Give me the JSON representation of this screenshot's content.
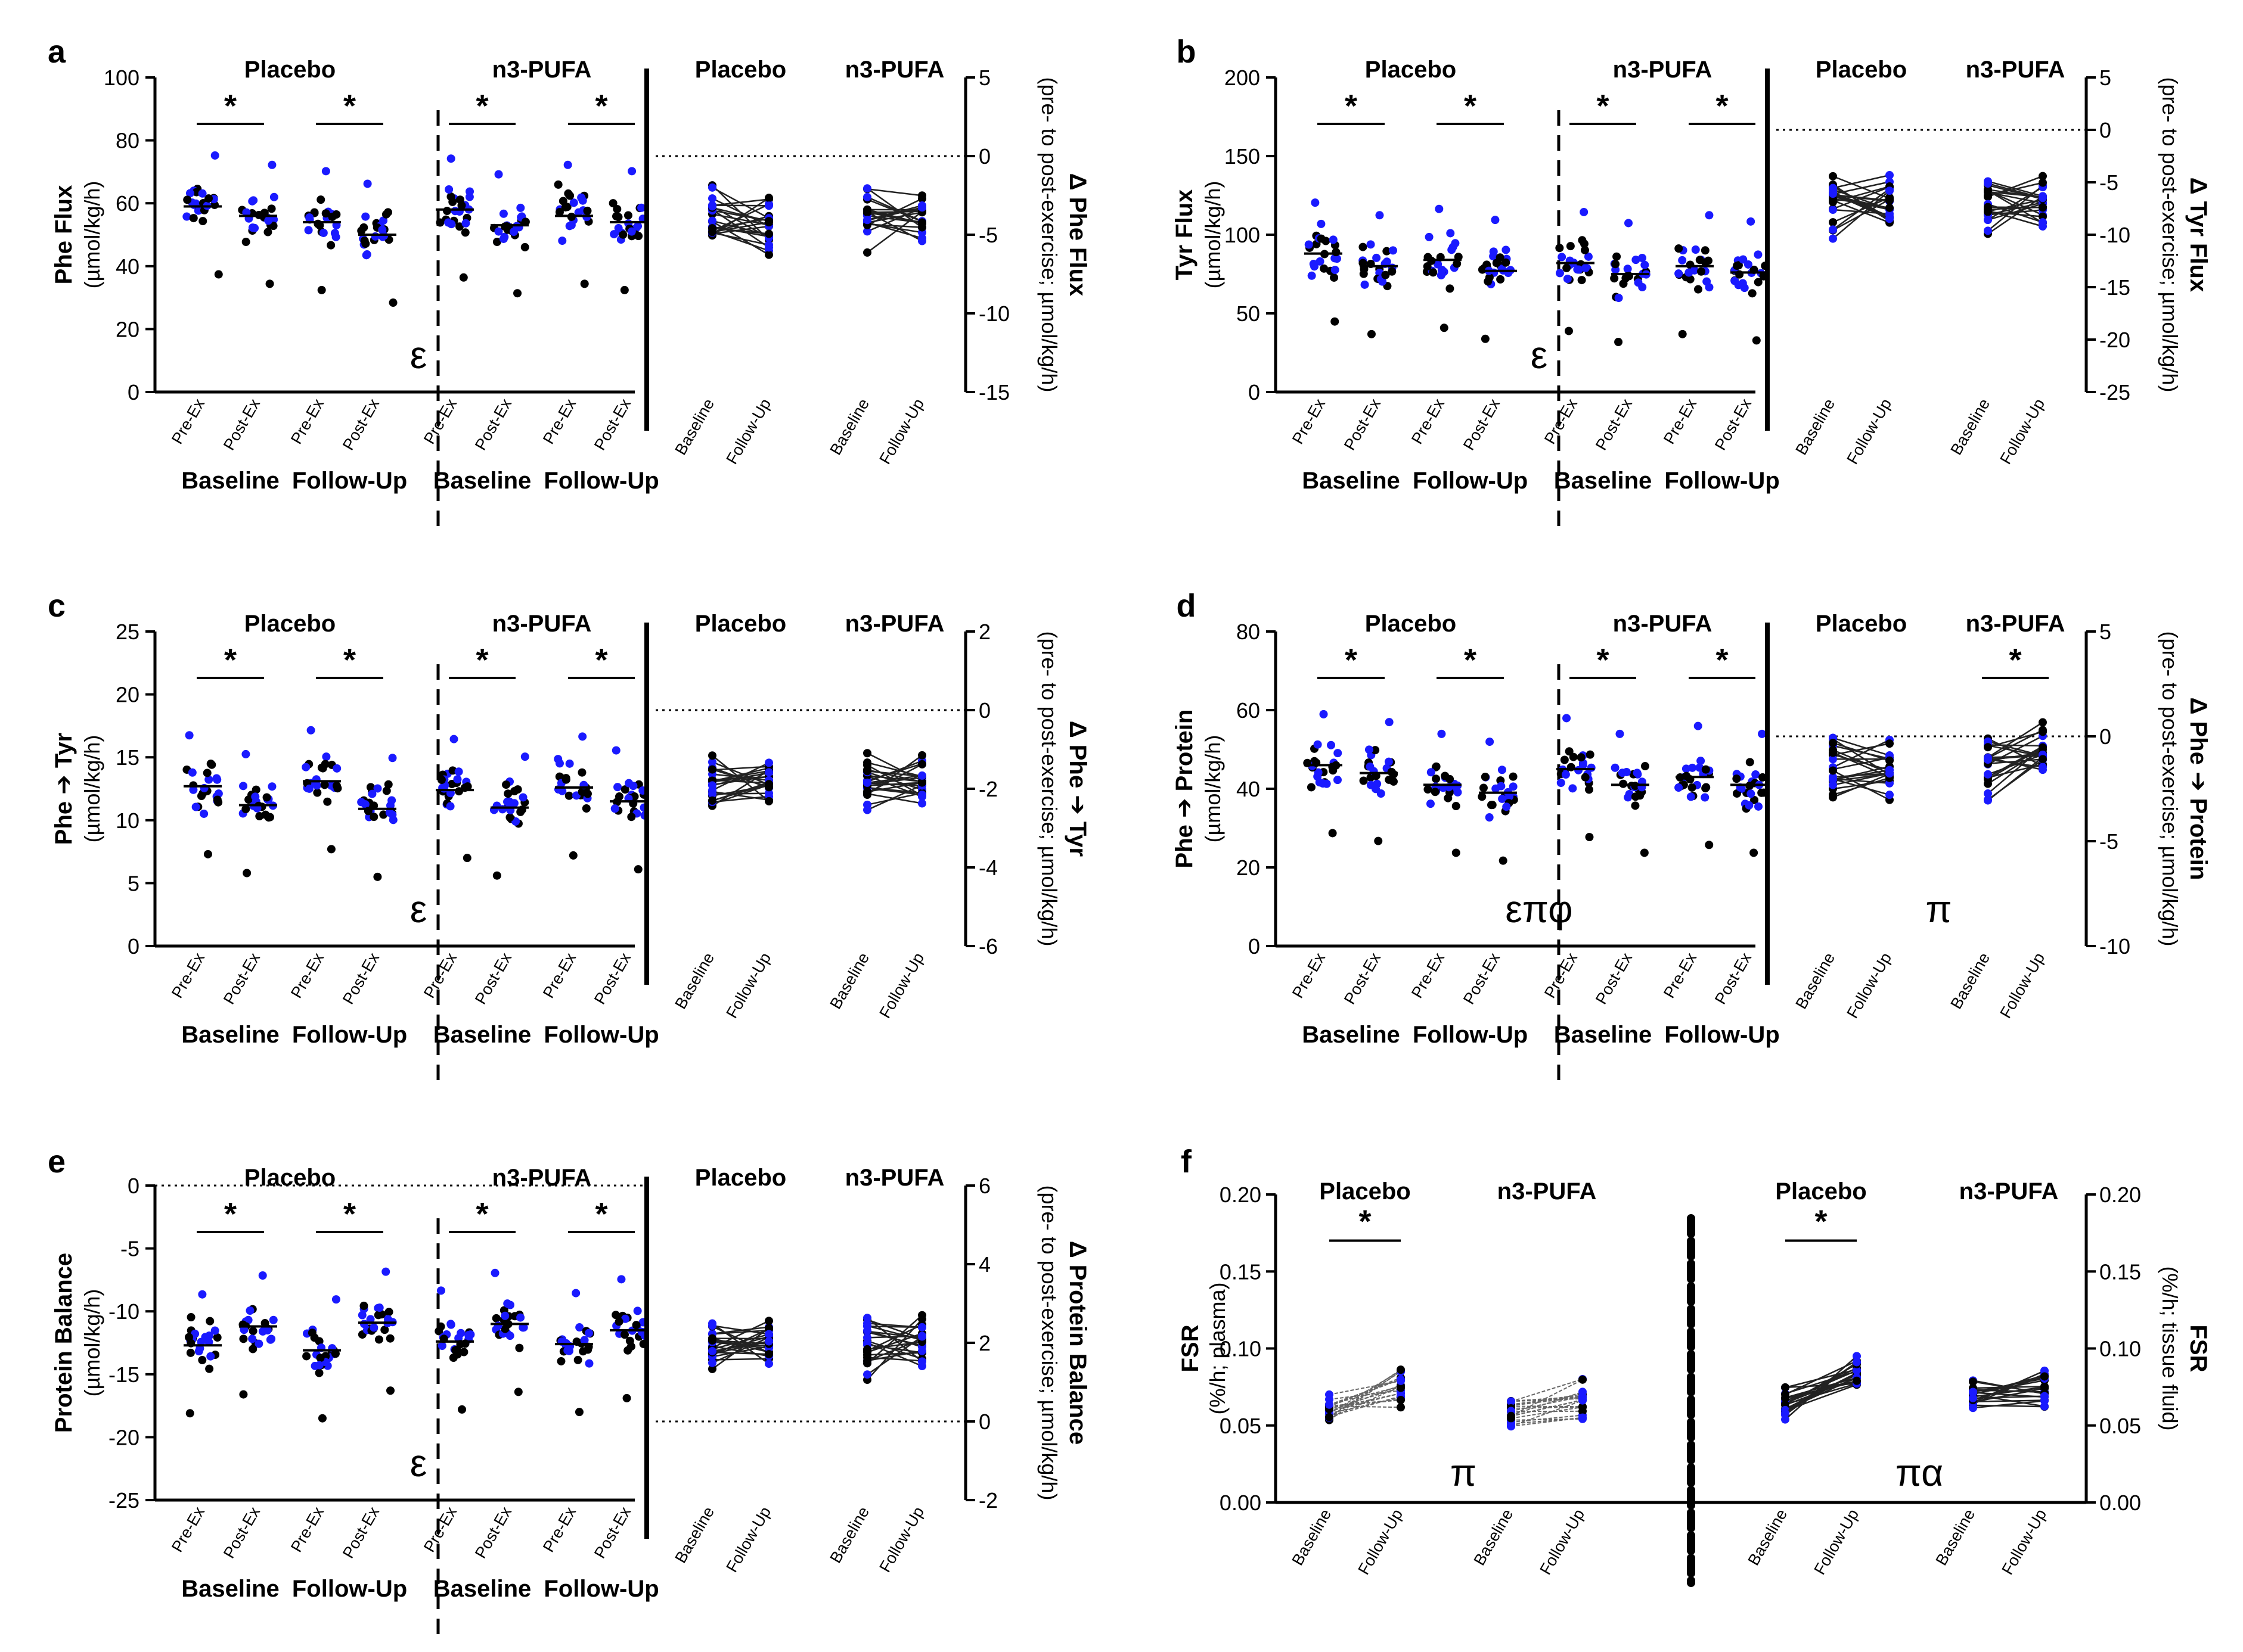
{
  "colors": {
    "black": "#000000",
    "blue": "#1a1aff"
  },
  "chart_data": [
    {
      "id": "a",
      "type": "scatter",
      "panel_label": "a",
      "ylabel": "Phe Flux",
      "yunit": "(µmol/kg/h)",
      "ylim": [
        0,
        100
      ],
      "yticks": [
        "0",
        "20",
        "40",
        "60",
        "80",
        "100"
      ],
      "groups": [
        "Placebo",
        "n3-PUFA"
      ],
      "times": [
        "Baseline",
        "Follow-Up"
      ],
      "conditions": [
        "Pre-Ex",
        "Post-Ex"
      ],
      "medians": [
        59,
        56,
        54,
        50,
        58,
        53,
        56,
        54
      ],
      "stars": [
        "*",
        "*",
        "*",
        "*"
      ],
      "marker": "ε",
      "right": {
        "ylabel": "Δ Phe Flux",
        "yunit": "(pre- to post-exercise; µmol/kg/h)",
        "ylim": [
          -15,
          5
        ],
        "yticks": [
          "-15",
          "-10",
          "-5",
          "0",
          "5"
        ],
        "groups": [
          "Placebo",
          "n3-PUFA"
        ],
        "xlabels": [
          "Baseline",
          "Follow-Up"
        ],
        "star": "",
        "marker": ""
      }
    },
    {
      "id": "b",
      "type": "scatter",
      "panel_label": "b",
      "ylabel": "Tyr Flux",
      "yunit": "(µmol/kg/h)",
      "ylim": [
        0,
        200
      ],
      "yticks": [
        "0",
        "50",
        "100",
        "150",
        "200"
      ],
      "groups": [
        "Placebo",
        "n3-PUFA"
      ],
      "times": [
        "Baseline",
        "Follow-Up"
      ],
      "conditions": [
        "Pre-Ex",
        "Post-Ex"
      ],
      "medians": [
        88,
        80,
        84,
        77,
        82,
        75,
        80,
        76
      ],
      "stars": [
        "*",
        "*",
        "*",
        "*"
      ],
      "marker": "ε",
      "right": {
        "ylabel": "Δ Tyr Flux",
        "yunit": "(pre- to post-exercise; µmol/kg/h)",
        "ylim": [
          -25,
          5
        ],
        "yticks": [
          "-25",
          "-20",
          "-15",
          "-10",
          "-5",
          "0",
          "5"
        ],
        "groups": [
          "Placebo",
          "n3-PUFA"
        ],
        "xlabels": [
          "Baseline",
          "Follow-Up"
        ],
        "star": "",
        "marker": ""
      }
    },
    {
      "id": "c",
      "type": "scatter",
      "panel_label": "c",
      "ylabel": "Phe ➔ Tyr",
      "yunit": "(µmol/kg/h)",
      "ylim": [
        0,
        25
      ],
      "yticks": [
        "0",
        "5",
        "10",
        "15",
        "20",
        "25"
      ],
      "groups": [
        "Placebo",
        "n3-PUFA"
      ],
      "times": [
        "Baseline",
        "Follow-Up"
      ],
      "conditions": [
        "Pre-Ex",
        "Post-Ex"
      ],
      "medians": [
        12.7,
        11.2,
        13.1,
        10.9,
        12.4,
        11.0,
        12.6,
        11.5
      ],
      "stars": [
        "*",
        "*",
        "*",
        "*"
      ],
      "marker": "ε",
      "right": {
        "ylabel": "Δ Phe ➔ Tyr",
        "yunit": "(pre- to post-exercise; µmol/kg/h)",
        "ylim": [
          -6,
          2
        ],
        "yticks": [
          "-6",
          "-4",
          "-2",
          "0",
          "2"
        ],
        "groups": [
          "Placebo",
          "n3-PUFA"
        ],
        "xlabels": [
          "Baseline",
          "Follow-Up"
        ],
        "star": "",
        "marker": ""
      }
    },
    {
      "id": "d",
      "type": "scatter",
      "panel_label": "d",
      "ylabel": "Phe ➔ Protein",
      "yunit": "(µmol/kg/h)",
      "ylim": [
        0,
        80
      ],
      "yticks": [
        "0",
        "20",
        "40",
        "60",
        "80"
      ],
      "groups": [
        "Placebo",
        "n3-PUFA"
      ],
      "times": [
        "Baseline",
        "Follow-Up"
      ],
      "conditions": [
        "Pre-Ex",
        "Post-Ex"
      ],
      "medians": [
        46,
        44,
        41,
        39,
        45,
        41,
        43,
        41
      ],
      "stars": [
        "*",
        "*",
        "*",
        "*"
      ],
      "marker": "επφ",
      "right": {
        "ylabel": "Δ Phe ➔ Protein",
        "yunit": "(pre- to post-exercise; µmol/kg/h)",
        "ylim": [
          -10,
          5
        ],
        "yticks": [
          "-10",
          "-5",
          "0",
          "5"
        ],
        "groups": [
          "Placebo",
          "n3-PUFA"
        ],
        "xlabels": [
          "Baseline",
          "Follow-Up"
        ],
        "star": "*",
        "marker": "π"
      }
    },
    {
      "id": "e",
      "type": "scatter",
      "panel_label": "e",
      "ylabel": "Protein Balance",
      "yunit": "(µmol/kg/h)",
      "ylim": [
        -25,
        0
      ],
      "yticks": [
        "-25",
        "-20",
        "-15",
        "-10",
        "-5",
        "0"
      ],
      "groups": [
        "Placebo",
        "n3-PUFA"
      ],
      "times": [
        "Baseline",
        "Follow-Up"
      ],
      "conditions": [
        "Pre-Ex",
        "Post-Ex"
      ],
      "medians": [
        -12.7,
        -11.2,
        -13.1,
        -10.9,
        -12.4,
        -11.0,
        -12.6,
        -11.5
      ],
      "stars": [
        "*",
        "*",
        "*",
        "*"
      ],
      "marker": "ε",
      "right": {
        "ylabel": "Δ Protein Balance",
        "yunit": "(pre- to post-exercise; µmol/kg/h)",
        "ylim": [
          -2,
          6
        ],
        "yticks": [
          "-2",
          "0",
          "2",
          "4",
          "6"
        ],
        "groups": [
          "Placebo",
          "n3-PUFA"
        ],
        "xlabels": [
          "Baseline",
          "Follow-Up"
        ],
        "star": "",
        "marker": ""
      }
    },
    {
      "id": "f",
      "type": "line",
      "panel_label": "f",
      "left_ylabel": "FSR",
      "left_yunit": "(%/h; plasma)",
      "right_ylabel": "FSR",
      "right_yunit": "(%/h; tissue fluid)",
      "ylim": [
        0,
        0.2
      ],
      "yticks": [
        "0.00",
        "0.05",
        "0.10",
        "0.15",
        "0.20"
      ],
      "groups": [
        "Placebo",
        "n3-PUFA",
        "Placebo",
        "n3-PUFA"
      ],
      "xlabels": [
        "Baseline",
        "Follow-Up"
      ],
      "stars": [
        "*",
        "",
        "*",
        ""
      ],
      "markers": [
        "π",
        "πα"
      ]
    }
  ]
}
